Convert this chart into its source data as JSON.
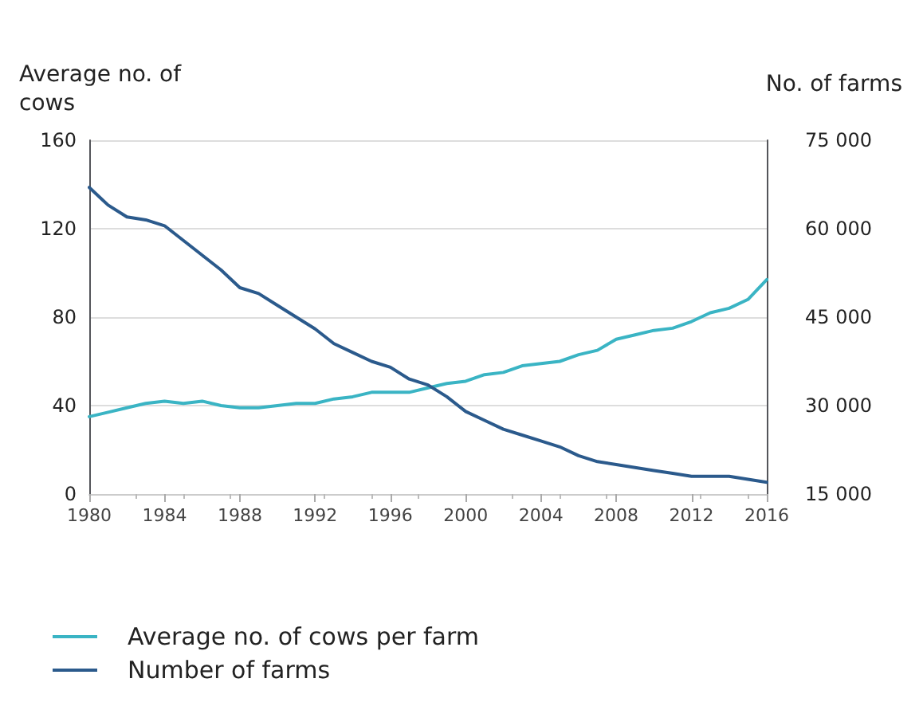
{
  "chart_data": {
    "type": "line",
    "ylabel": "Average no. of\ncows",
    "y2label": "No. of farms",
    "x": [
      1980,
      1981,
      1982,
      1983,
      1984,
      1985,
      1986,
      1987,
      1988,
      1989,
      1990,
      1991,
      1992,
      1993,
      1994,
      1995,
      1996,
      1997,
      1998,
      1999,
      2000,
      2001,
      2002,
      2003,
      2004,
      2005,
      2006,
      2007,
      2008,
      2009,
      2010,
      2011,
      2012,
      2013,
      2014,
      2015,
      2016
    ],
    "series": [
      {
        "name": "Average no. of cows per farm",
        "color": "#3ab4c4",
        "values": [
          35,
          37,
          39,
          41,
          42,
          41,
          42,
          40,
          39,
          39,
          40,
          41,
          41,
          43,
          44,
          46,
          46,
          46,
          48,
          50,
          51,
          54,
          55,
          58,
          59,
          60,
          63,
          65,
          70,
          72,
          74,
          75,
          78,
          82,
          84,
          88,
          97
        ]
      },
      {
        "name": "Number of farms",
        "color": "#2b5a8c",
        "axis": "y2",
        "values": [
          67000,
          64000,
          62000,
          61500,
          60500,
          58000,
          55500,
          53000,
          50000,
          49000,
          47000,
          45000,
          43000,
          40500,
          39000,
          37500,
          36500,
          34500,
          33500,
          31500,
          29000,
          27500,
          26000,
          25000,
          24000,
          23000,
          21500,
          20500,
          20000,
          19500,
          19000,
          18500,
          18000,
          18000,
          18000,
          17500,
          17000
        ]
      }
    ],
    "xlim": [
      1980,
      2016
    ],
    "xticks": [
      1980,
      1984,
      1988,
      1992,
      1996,
      2000,
      2004,
      2008,
      2012,
      2016
    ],
    "ylim": [
      0,
      160
    ],
    "yticks": [
      0,
      40,
      80,
      120,
      160
    ],
    "y2lim": [
      15000,
      75000
    ],
    "y2ticks": [
      {
        "value": 15000,
        "label": "15 000"
      },
      {
        "value": 30000,
        "label": "30 000"
      },
      {
        "value": 45000,
        "label": "45 000"
      },
      {
        "value": 60000,
        "label": "60 000"
      },
      {
        "value": 75000,
        "label": "75 000"
      }
    ],
    "grid": "y",
    "legend": "bottom left",
    "marker": "none",
    "line_style": "solid"
  }
}
